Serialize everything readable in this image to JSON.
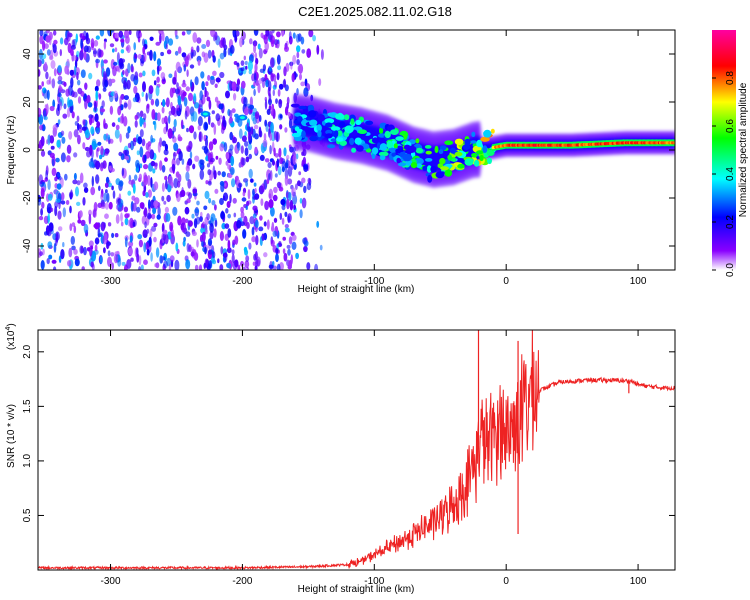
{
  "title": "C2E1.2025.082.11.02.G18",
  "chart_data": [
    {
      "type": "heatmap",
      "xlabel": "Height of straight line (km)",
      "ylabel": "Frequency (Hz)",
      "xlim": [
        -355,
        128
      ],
      "ylim": [
        -50,
        50
      ],
      "x_ticks": [
        -300,
        -200,
        -100,
        0,
        100
      ],
      "x_tick_labels": [
        "-300",
        "-200",
        "-100",
        "0",
        "100"
      ],
      "y_ticks": [
        40,
        20,
        0,
        -20,
        -40
      ],
      "y_tick_labels": [
        "40",
        "20",
        "0",
        "-20",
        "-40"
      ],
      "colorbar": {
        "label": "Normalized spectral amplitude",
        "range": [
          0,
          1
        ],
        "ticks": [
          0.0,
          0.2,
          0.4,
          0.6,
          0.8
        ],
        "tick_labels": [
          "0.0",
          "0.2",
          "0.4",
          "0.6",
          "0.8"
        ],
        "colors": [
          "#ffffff",
          "#8a00ff",
          "#0000ff",
          "#00ffff",
          "#00ff00",
          "#ffff00",
          "#ff0000",
          "#ff00a0"
        ]
      },
      "noise_region": {
        "x": [
          -355,
          -138
        ],
        "amplitude": [
          0.05,
          0.35
        ]
      },
      "signal_ridge": [
        {
          "x": -228,
          "y": 15,
          "amplitude": 0.3
        },
        {
          "x": -200,
          "y": 14,
          "amplitude": 0.35
        },
        {
          "x": -150,
          "y": 11,
          "amplitude": 0.3
        },
        {
          "x": -130,
          "y": 8,
          "amplitude": 0.4
        },
        {
          "x": -110,
          "y": 6,
          "amplitude": 0.45
        },
        {
          "x": -90,
          "y": 3,
          "amplitude": 0.5
        },
        {
          "x": -70,
          "y": -2,
          "amplitude": 0.5
        },
        {
          "x": -55,
          "y": -4,
          "amplitude": 0.55
        },
        {
          "x": -40,
          "y": -3,
          "amplitude": 0.6
        },
        {
          "x": -25,
          "y": 0,
          "amplitude": 0.7
        },
        {
          "x": -10,
          "y": 1,
          "amplitude": 0.75
        },
        {
          "x": 0,
          "y": 2,
          "amplitude": 0.8
        },
        {
          "x": 20,
          "y": 2,
          "amplitude": 0.85
        },
        {
          "x": 50,
          "y": 2,
          "amplitude": 0.8
        },
        {
          "x": 90,
          "y": 3,
          "amplitude": 0.82
        },
        {
          "x": 128,
          "y": 3,
          "amplitude": 0.8
        }
      ]
    },
    {
      "type": "line",
      "xlabel": "Height of straight line (km)",
      "ylabel": "SNR (10 * v/v)",
      "y_scale_label": "(x10",
      "y_scale_exponent": "4",
      "xlim": [
        -355,
        128
      ],
      "ylim": [
        0,
        2.2
      ],
      "x_ticks": [
        -300,
        -200,
        -100,
        0,
        100
      ],
      "x_tick_labels": [
        "-300",
        "-200",
        "-100",
        "0",
        "100"
      ],
      "y_ticks": [
        2.0,
        1.5,
        1.0,
        0.5
      ],
      "y_tick_labels": [
        "2.0",
        "1.5",
        "1.0",
        "0.5"
      ],
      "color": "#ee2222",
      "series": [
        {
          "x": [
            -355,
            -300,
            -250,
            -200,
            -150,
            -120,
            -110,
            -100,
            -90,
            -80,
            -70,
            -60,
            -50,
            -40,
            -30,
            -25,
            -22,
            -20,
            -15,
            -10,
            -5,
            0,
            5,
            8,
            10,
            15,
            20,
            30,
            40,
            60,
            80,
            95,
            100,
            110,
            120,
            128
          ],
          "y": [
            0.02,
            0.02,
            0.02,
            0.02,
            0.03,
            0.05,
            0.08,
            0.14,
            0.2,
            0.26,
            0.33,
            0.4,
            0.48,
            0.6,
            0.78,
            0.95,
            1.05,
            1.25,
            1.15,
            1.22,
            1.35,
            1.25,
            1.3,
            1.4,
            1.42,
            1.52,
            1.62,
            1.67,
            1.72,
            1.74,
            1.74,
            1.73,
            1.7,
            1.68,
            1.67,
            1.67
          ]
        }
      ],
      "spikes": [
        {
          "x": -21,
          "y": 2.2
        },
        {
          "x": 9,
          "y": 2.1
        },
        {
          "x": 9,
          "y": 0.33
        },
        {
          "x": 93,
          "y": 1.62
        }
      ]
    }
  ]
}
